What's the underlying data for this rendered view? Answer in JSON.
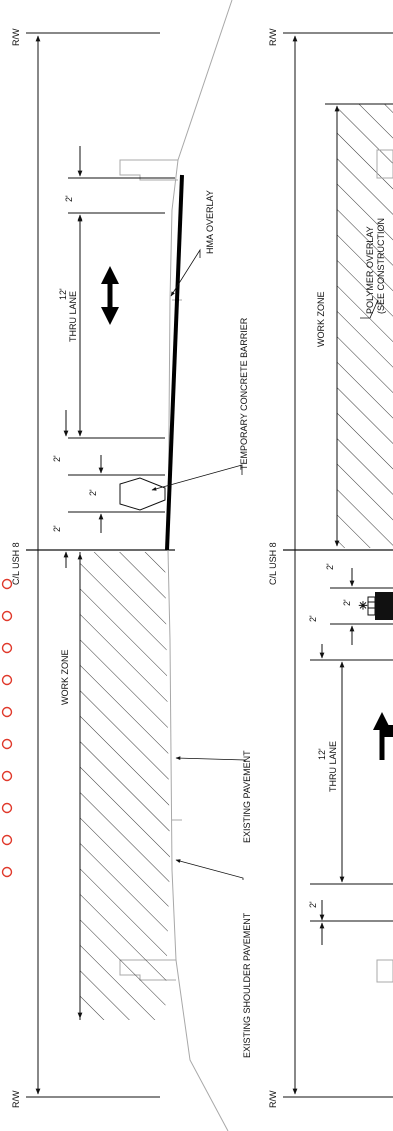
{
  "left_section": {
    "rw_top": "R/W",
    "rw_bottom": "R/W",
    "centerline": "C/L USH 8",
    "dim_shoulder_top": "2'",
    "dim_thru_lane_width": "12'",
    "thru_lane": "THRU LANE",
    "dim_offset_1": "2'",
    "dim_barrier": "2'",
    "dim_offset_2": "2'",
    "work_zone": "WORK ZONE",
    "hma_overlay": "HMA OVERLAY",
    "temp_barrier": "TEMPORARY CONCRETE BARRIER",
    "existing_pavement": "EXISTING PAVEMENT",
    "existing_shoulder": "EXISTING SHOULDER PAVEMENT"
  },
  "right_section": {
    "rw_top": "R/W",
    "rw_bottom": "R/W",
    "centerline": "C/L USH 8",
    "work_zone": "WORK ZONE",
    "polymer_overlay": "POLYMER OVERLAY",
    "see_construction": "(SEE CONSTRUCTION",
    "dim_offset_1": "2'",
    "dim_barrier": "2'",
    "dim_offset_2": "2'",
    "dim_thru_lane_width": "12'",
    "thru_lane": "THRU LANE",
    "dim_shoulder_bottom": "2'"
  },
  "colors": {
    "ink": "#111111",
    "pavement_outline": "#a8a8a8",
    "stage_marks": "#e0392b"
  }
}
